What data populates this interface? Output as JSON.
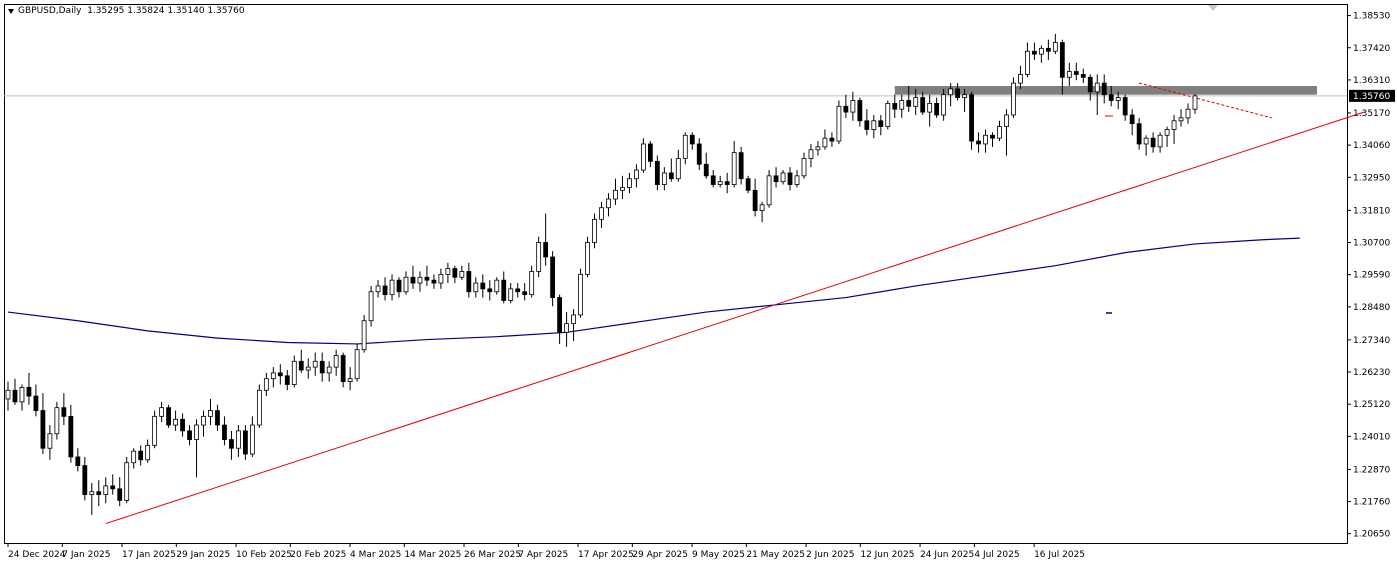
{
  "header": {
    "symbol": "GBPUSD,Daily",
    "ohlc": "1.35295 1.35824 1.35140 1.35760"
  },
  "chart_data": {
    "type": "candlestick",
    "symbol": "GBPUSD",
    "timeframe": "Daily",
    "ylim": [
      1.2033,
      1.3893
    ],
    "y_ticks": [
      "1.38530",
      "1.37420",
      "1.36310",
      "1.35170",
      "1.34060",
      "1.32950",
      "1.31810",
      "1.30700",
      "1.29590",
      "1.28480",
      "1.27340",
      "1.26230",
      "1.25120",
      "1.24010",
      "1.22870",
      "1.21760",
      "1.20650"
    ],
    "x_ticks": [
      "24 Dec 2024",
      "7 Jan 2025",
      "17 Jan 2025",
      "29 Jan 2025",
      "10 Feb 2025",
      "20 Feb 2025",
      "4 Mar 2025",
      "14 Mar 2025",
      "26 Mar 2025",
      "7 Apr 2025",
      "17 Apr 2025",
      "29 Apr 2025",
      "9 May 2025",
      "21 May 2025",
      "2 Jun 2025",
      "12 Jun 2025",
      "24 Jun 2025",
      "4 Jul 2025",
      "16 Jul 2025"
    ],
    "current_price": "1.35760",
    "candles": [
      {
        "o": 1.253,
        "h": 1.259,
        "l": 1.249,
        "c": 1.256
      },
      {
        "o": 1.256,
        "h": 1.26,
        "l": 1.251,
        "c": 1.252
      },
      {
        "o": 1.252,
        "h": 1.258,
        "l": 1.249,
        "c": 1.257
      },
      {
        "o": 1.257,
        "h": 1.262,
        "l": 1.251,
        "c": 1.254
      },
      {
        "o": 1.254,
        "h": 1.258,
        "l": 1.247,
        "c": 1.249
      },
      {
        "o": 1.249,
        "h": 1.255,
        "l": 1.234,
        "c": 1.236
      },
      {
        "o": 1.236,
        "h": 1.244,
        "l": 1.232,
        "c": 1.241
      },
      {
        "o": 1.241,
        "h": 1.252,
        "l": 1.239,
        "c": 1.25
      },
      {
        "o": 1.25,
        "h": 1.255,
        "l": 1.244,
        "c": 1.247
      },
      {
        "o": 1.247,
        "h": 1.251,
        "l": 1.231,
        "c": 1.233
      },
      {
        "o": 1.233,
        "h": 1.236,
        "l": 1.228,
        "c": 1.23
      },
      {
        "o": 1.23,
        "h": 1.233,
        "l": 1.218,
        "c": 1.22
      },
      {
        "o": 1.22,
        "h": 1.224,
        "l": 1.213,
        "c": 1.221
      },
      {
        "o": 1.221,
        "h": 1.225,
        "l": 1.216,
        "c": 1.22
      },
      {
        "o": 1.22,
        "h": 1.226,
        "l": 1.217,
        "c": 1.223
      },
      {
        "o": 1.223,
        "h": 1.227,
        "l": 1.22,
        "c": 1.222
      },
      {
        "o": 1.222,
        "h": 1.226,
        "l": 1.216,
        "c": 1.218
      },
      {
        "o": 1.218,
        "h": 1.233,
        "l": 1.217,
        "c": 1.231
      },
      {
        "o": 1.231,
        "h": 1.236,
        "l": 1.229,
        "c": 1.235
      },
      {
        "o": 1.235,
        "h": 1.237,
        "l": 1.23,
        "c": 1.232
      },
      {
        "o": 1.232,
        "h": 1.239,
        "l": 1.231,
        "c": 1.237
      },
      {
        "o": 1.237,
        "h": 1.249,
        "l": 1.236,
        "c": 1.247
      },
      {
        "o": 1.247,
        "h": 1.252,
        "l": 1.245,
        "c": 1.25
      },
      {
        "o": 1.25,
        "h": 1.251,
        "l": 1.243,
        "c": 1.244
      },
      {
        "o": 1.244,
        "h": 1.249,
        "l": 1.242,
        "c": 1.246
      },
      {
        "o": 1.246,
        "h": 1.248,
        "l": 1.24,
        "c": 1.242
      },
      {
        "o": 1.242,
        "h": 1.244,
        "l": 1.237,
        "c": 1.239
      },
      {
        "o": 1.239,
        "h": 1.246,
        "l": 1.226,
        "c": 1.244
      },
      {
        "o": 1.244,
        "h": 1.249,
        "l": 1.24,
        "c": 1.247
      },
      {
        "o": 1.247,
        "h": 1.253,
        "l": 1.244,
        "c": 1.249
      },
      {
        "o": 1.249,
        "h": 1.251,
        "l": 1.242,
        "c": 1.244
      },
      {
        "o": 1.244,
        "h": 1.247,
        "l": 1.237,
        "c": 1.239
      },
      {
        "o": 1.239,
        "h": 1.242,
        "l": 1.232,
        "c": 1.236
      },
      {
        "o": 1.236,
        "h": 1.244,
        "l": 1.233,
        "c": 1.242
      },
      {
        "o": 1.242,
        "h": 1.244,
        "l": 1.232,
        "c": 1.234
      },
      {
        "o": 1.234,
        "h": 1.247,
        "l": 1.233,
        "c": 1.244
      },
      {
        "o": 1.244,
        "h": 1.258,
        "l": 1.243,
        "c": 1.256
      },
      {
        "o": 1.256,
        "h": 1.262,
        "l": 1.254,
        "c": 1.26
      },
      {
        "o": 1.26,
        "h": 1.264,
        "l": 1.257,
        "c": 1.262
      },
      {
        "o": 1.262,
        "h": 1.265,
        "l": 1.258,
        "c": 1.261
      },
      {
        "o": 1.261,
        "h": 1.263,
        "l": 1.256,
        "c": 1.258
      },
      {
        "o": 1.258,
        "h": 1.268,
        "l": 1.257,
        "c": 1.266
      },
      {
        "o": 1.266,
        "h": 1.27,
        "l": 1.262,
        "c": 1.263
      },
      {
        "o": 1.263,
        "h": 1.267,
        "l": 1.26,
        "c": 1.264
      },
      {
        "o": 1.264,
        "h": 1.269,
        "l": 1.261,
        "c": 1.266
      },
      {
        "o": 1.266,
        "h": 1.269,
        "l": 1.259,
        "c": 1.262
      },
      {
        "o": 1.262,
        "h": 1.266,
        "l": 1.259,
        "c": 1.264
      },
      {
        "o": 1.264,
        "h": 1.27,
        "l": 1.261,
        "c": 1.268
      },
      {
        "o": 1.268,
        "h": 1.269,
        "l": 1.257,
        "c": 1.259
      },
      {
        "o": 1.259,
        "h": 1.264,
        "l": 1.256,
        "c": 1.26
      },
      {
        "o": 1.26,
        "h": 1.272,
        "l": 1.259,
        "c": 1.27
      },
      {
        "o": 1.27,
        "h": 1.282,
        "l": 1.269,
        "c": 1.28
      },
      {
        "o": 1.28,
        "h": 1.292,
        "l": 1.278,
        "c": 1.29
      },
      {
        "o": 1.29,
        "h": 1.294,
        "l": 1.288,
        "c": 1.292
      },
      {
        "o": 1.292,
        "h": 1.295,
        "l": 1.287,
        "c": 1.289
      },
      {
        "o": 1.289,
        "h": 1.296,
        "l": 1.287,
        "c": 1.294
      },
      {
        "o": 1.294,
        "h": 1.295,
        "l": 1.288,
        "c": 1.29
      },
      {
        "o": 1.29,
        "h": 1.297,
        "l": 1.289,
        "c": 1.295
      },
      {
        "o": 1.295,
        "h": 1.299,
        "l": 1.291,
        "c": 1.293
      },
      {
        "o": 1.293,
        "h": 1.297,
        "l": 1.29,
        "c": 1.295
      },
      {
        "o": 1.295,
        "h": 1.299,
        "l": 1.292,
        "c": 1.294
      },
      {
        "o": 1.294,
        "h": 1.296,
        "l": 1.291,
        "c": 1.293
      },
      {
        "o": 1.293,
        "h": 1.298,
        "l": 1.291,
        "c": 1.296
      },
      {
        "o": 1.296,
        "h": 1.3,
        "l": 1.293,
        "c": 1.298
      },
      {
        "o": 1.298,
        "h": 1.299,
        "l": 1.293,
        "c": 1.295
      },
      {
        "o": 1.295,
        "h": 1.299,
        "l": 1.294,
        "c": 1.297
      },
      {
        "o": 1.297,
        "h": 1.3,
        "l": 1.288,
        "c": 1.29
      },
      {
        "o": 1.29,
        "h": 1.295,
        "l": 1.288,
        "c": 1.293
      },
      {
        "o": 1.293,
        "h": 1.296,
        "l": 1.288,
        "c": 1.291
      },
      {
        "o": 1.291,
        "h": 1.294,
        "l": 1.287,
        "c": 1.29
      },
      {
        "o": 1.29,
        "h": 1.295,
        "l": 1.289,
        "c": 1.294
      },
      {
        "o": 1.294,
        "h": 1.297,
        "l": 1.286,
        "c": 1.287
      },
      {
        "o": 1.287,
        "h": 1.293,
        "l": 1.286,
        "c": 1.291
      },
      {
        "o": 1.291,
        "h": 1.293,
        "l": 1.288,
        "c": 1.29
      },
      {
        "o": 1.29,
        "h": 1.293,
        "l": 1.287,
        "c": 1.289
      },
      {
        "o": 1.289,
        "h": 1.299,
        "l": 1.288,
        "c": 1.297
      },
      {
        "o": 1.297,
        "h": 1.309,
        "l": 1.295,
        "c": 1.307
      },
      {
        "o": 1.307,
        "h": 1.317,
        "l": 1.299,
        "c": 1.302
      },
      {
        "o": 1.302,
        "h": 1.304,
        "l": 1.285,
        "c": 1.288
      },
      {
        "o": 1.288,
        "h": 1.289,
        "l": 1.272,
        "c": 1.276
      },
      {
        "o": 1.276,
        "h": 1.283,
        "l": 1.271,
        "c": 1.279
      },
      {
        "o": 1.279,
        "h": 1.284,
        "l": 1.273,
        "c": 1.282
      },
      {
        "o": 1.282,
        "h": 1.298,
        "l": 1.281,
        "c": 1.296
      },
      {
        "o": 1.296,
        "h": 1.309,
        "l": 1.295,
        "c": 1.307
      },
      {
        "o": 1.307,
        "h": 1.317,
        "l": 1.305,
        "c": 1.315
      },
      {
        "o": 1.315,
        "h": 1.321,
        "l": 1.312,
        "c": 1.319
      },
      {
        "o": 1.319,
        "h": 1.324,
        "l": 1.316,
        "c": 1.322
      },
      {
        "o": 1.322,
        "h": 1.329,
        "l": 1.32,
        "c": 1.325
      },
      {
        "o": 1.325,
        "h": 1.33,
        "l": 1.322,
        "c": 1.326
      },
      {
        "o": 1.326,
        "h": 1.331,
        "l": 1.324,
        "c": 1.329
      },
      {
        "o": 1.329,
        "h": 1.334,
        "l": 1.326,
        "c": 1.332
      },
      {
        "o": 1.332,
        "h": 1.343,
        "l": 1.331,
        "c": 1.341
      },
      {
        "o": 1.341,
        "h": 1.342,
        "l": 1.333,
        "c": 1.335
      },
      {
        "o": 1.335,
        "h": 1.337,
        "l": 1.325,
        "c": 1.327
      },
      {
        "o": 1.327,
        "h": 1.333,
        "l": 1.325,
        "c": 1.331
      },
      {
        "o": 1.331,
        "h": 1.336,
        "l": 1.328,
        "c": 1.329
      },
      {
        "o": 1.329,
        "h": 1.339,
        "l": 1.328,
        "c": 1.336
      },
      {
        "o": 1.336,
        "h": 1.345,
        "l": 1.334,
        "c": 1.344
      },
      {
        "o": 1.344,
        "h": 1.345,
        "l": 1.339,
        "c": 1.341
      },
      {
        "o": 1.341,
        "h": 1.343,
        "l": 1.332,
        "c": 1.334
      },
      {
        "o": 1.334,
        "h": 1.338,
        "l": 1.329,
        "c": 1.33
      },
      {
        "o": 1.33,
        "h": 1.332,
        "l": 1.326,
        "c": 1.327
      },
      {
        "o": 1.327,
        "h": 1.33,
        "l": 1.326,
        "c": 1.328
      },
      {
        "o": 1.328,
        "h": 1.331,
        "l": 1.324,
        "c": 1.327
      },
      {
        "o": 1.327,
        "h": 1.342,
        "l": 1.326,
        "c": 1.338
      },
      {
        "o": 1.338,
        "h": 1.34,
        "l": 1.327,
        "c": 1.329
      },
      {
        "o": 1.329,
        "h": 1.33,
        "l": 1.324,
        "c": 1.325
      },
      {
        "o": 1.325,
        "h": 1.329,
        "l": 1.316,
        "c": 1.318
      },
      {
        "o": 1.318,
        "h": 1.321,
        "l": 1.314,
        "c": 1.32
      },
      {
        "o": 1.32,
        "h": 1.332,
        "l": 1.319,
        "c": 1.33
      },
      {
        "o": 1.33,
        "h": 1.333,
        "l": 1.326,
        "c": 1.328
      },
      {
        "o": 1.328,
        "h": 1.332,
        "l": 1.327,
        "c": 1.331
      },
      {
        "o": 1.331,
        "h": 1.333,
        "l": 1.325,
        "c": 1.327
      },
      {
        "o": 1.327,
        "h": 1.332,
        "l": 1.326,
        "c": 1.33
      },
      {
        "o": 1.33,
        "h": 1.338,
        "l": 1.329,
        "c": 1.336
      },
      {
        "o": 1.336,
        "h": 1.341,
        "l": 1.333,
        "c": 1.339
      },
      {
        "o": 1.339,
        "h": 1.342,
        "l": 1.337,
        "c": 1.34
      },
      {
        "o": 1.34,
        "h": 1.346,
        "l": 1.339,
        "c": 1.343
      },
      {
        "o": 1.343,
        "h": 1.345,
        "l": 1.34,
        "c": 1.342
      },
      {
        "o": 1.342,
        "h": 1.356,
        "l": 1.341,
        "c": 1.354
      },
      {
        "o": 1.354,
        "h": 1.358,
        "l": 1.35,
        "c": 1.352
      },
      {
        "o": 1.352,
        "h": 1.359,
        "l": 1.349,
        "c": 1.356
      },
      {
        "o": 1.356,
        "h": 1.357,
        "l": 1.347,
        "c": 1.349
      },
      {
        "o": 1.349,
        "h": 1.353,
        "l": 1.344,
        "c": 1.346
      },
      {
        "o": 1.346,
        "h": 1.351,
        "l": 1.343,
        "c": 1.349
      },
      {
        "o": 1.349,
        "h": 1.351,
        "l": 1.344,
        "c": 1.347
      },
      {
        "o": 1.347,
        "h": 1.356,
        "l": 1.346,
        "c": 1.355
      },
      {
        "o": 1.355,
        "h": 1.358,
        "l": 1.35,
        "c": 1.353
      },
      {
        "o": 1.353,
        "h": 1.358,
        "l": 1.35,
        "c": 1.356
      },
      {
        "o": 1.356,
        "h": 1.361,
        "l": 1.352,
        "c": 1.354
      },
      {
        "o": 1.354,
        "h": 1.36,
        "l": 1.351,
        "c": 1.357
      },
      {
        "o": 1.357,
        "h": 1.359,
        "l": 1.351,
        "c": 1.352
      },
      {
        "o": 1.352,
        "h": 1.358,
        "l": 1.347,
        "c": 1.355
      },
      {
        "o": 1.355,
        "h": 1.357,
        "l": 1.35,
        "c": 1.351
      },
      {
        "o": 1.351,
        "h": 1.36,
        "l": 1.349,
        "c": 1.358
      },
      {
        "o": 1.358,
        "h": 1.362,
        "l": 1.354,
        "c": 1.36
      },
      {
        "o": 1.36,
        "h": 1.362,
        "l": 1.356,
        "c": 1.357
      },
      {
        "o": 1.357,
        "h": 1.36,
        "l": 1.352,
        "c": 1.358
      },
      {
        "o": 1.358,
        "h": 1.359,
        "l": 1.339,
        "c": 1.342
      },
      {
        "o": 1.342,
        "h": 1.345,
        "l": 1.338,
        "c": 1.341
      },
      {
        "o": 1.341,
        "h": 1.346,
        "l": 1.338,
        "c": 1.344
      },
      {
        "o": 1.344,
        "h": 1.345,
        "l": 1.34,
        "c": 1.343
      },
      {
        "o": 1.343,
        "h": 1.349,
        "l": 1.342,
        "c": 1.347
      },
      {
        "o": 1.347,
        "h": 1.353,
        "l": 1.337,
        "c": 1.351
      },
      {
        "o": 1.351,
        "h": 1.364,
        "l": 1.35,
        "c": 1.362
      },
      {
        "o": 1.362,
        "h": 1.368,
        "l": 1.36,
        "c": 1.365
      },
      {
        "o": 1.365,
        "h": 1.376,
        "l": 1.364,
        "c": 1.373
      },
      {
        "o": 1.373,
        "h": 1.376,
        "l": 1.37,
        "c": 1.372
      },
      {
        "o": 1.372,
        "h": 1.375,
        "l": 1.369,
        "c": 1.374
      },
      {
        "o": 1.374,
        "h": 1.377,
        "l": 1.37,
        "c": 1.373
      },
      {
        "o": 1.373,
        "h": 1.379,
        "l": 1.372,
        "c": 1.376
      },
      {
        "o": 1.376,
        "h": 1.377,
        "l": 1.358,
        "c": 1.364
      },
      {
        "o": 1.364,
        "h": 1.369,
        "l": 1.361,
        "c": 1.366
      },
      {
        "o": 1.366,
        "h": 1.369,
        "l": 1.363,
        "c": 1.365
      },
      {
        "o": 1.365,
        "h": 1.367,
        "l": 1.362,
        "c": 1.364
      },
      {
        "o": 1.364,
        "h": 1.365,
        "l": 1.356,
        "c": 1.359
      },
      {
        "o": 1.359,
        "h": 1.365,
        "l": 1.351,
        "c": 1.362
      },
      {
        "o": 1.362,
        "h": 1.365,
        "l": 1.355,
        "c": 1.358
      },
      {
        "o": 1.358,
        "h": 1.361,
        "l": 1.354,
        "c": 1.356
      },
      {
        "o": 1.356,
        "h": 1.359,
        "l": 1.353,
        "c": 1.357
      },
      {
        "o": 1.357,
        "h": 1.358,
        "l": 1.349,
        "c": 1.351
      },
      {
        "o": 1.351,
        "h": 1.353,
        "l": 1.344,
        "c": 1.348
      },
      {
        "o": 1.348,
        "h": 1.35,
        "l": 1.339,
        "c": 1.341
      },
      {
        "o": 1.341,
        "h": 1.344,
        "l": 1.337,
        "c": 1.343
      },
      {
        "o": 1.343,
        "h": 1.345,
        "l": 1.338,
        "c": 1.34
      },
      {
        "o": 1.34,
        "h": 1.345,
        "l": 1.338,
        "c": 1.344
      },
      {
        "o": 1.344,
        "h": 1.347,
        "l": 1.34,
        "c": 1.346
      },
      {
        "o": 1.346,
        "h": 1.351,
        "l": 1.341,
        "c": 1.349
      },
      {
        "o": 1.349,
        "h": 1.353,
        "l": 1.347,
        "c": 1.35
      },
      {
        "o": 1.35,
        "h": 1.355,
        "l": 1.348,
        "c": 1.353
      },
      {
        "o": 1.353,
        "h": 1.3582,
        "l": 1.3514,
        "c": 1.3576
      }
    ],
    "moving_average": {
      "color": "#000080",
      "points": [
        [
          0,
          1.283
        ],
        [
          10,
          1.28
        ],
        [
          20,
          1.2765
        ],
        [
          30,
          1.274
        ],
        [
          40,
          1.2725
        ],
        [
          50,
          1.272
        ],
        [
          60,
          1.2735
        ],
        [
          70,
          1.2745
        ],
        [
          80,
          1.276
        ],
        [
          90,
          1.2795
        ],
        [
          100,
          1.283
        ],
        [
          110,
          1.2855
        ],
        [
          120,
          1.288
        ],
        [
          130,
          1.292
        ],
        [
          140,
          1.2955
        ],
        [
          150,
          1.299
        ],
        [
          160,
          1.3035
        ],
        [
          170,
          1.3065
        ],
        [
          180,
          1.308
        ],
        [
          185,
          1.3085
        ]
      ]
    },
    "trendline": {
      "color": "#e00000",
      "from": [
        14,
        1.21
      ],
      "to": [
        190,
        1.35
      ]
    },
    "resistance_zone": {
      "color": "#7f7f7f",
      "from_bar": 127,
      "to_bar": 189,
      "y_low": 1.358,
      "y_high": 1.361
    },
    "dashed_line": {
      "color": "#e00000",
      "from": [
        162,
        1.362
      ],
      "to": [
        181,
        1.35
      ]
    },
    "colors": {
      "bull_fill": "#ffffff",
      "bear_fill": "#000000",
      "candle_outline": "#000000",
      "grid": "#c0c0c0",
      "price_tag_bg": "#000000",
      "price_tag_text": "#ffffff"
    }
  }
}
